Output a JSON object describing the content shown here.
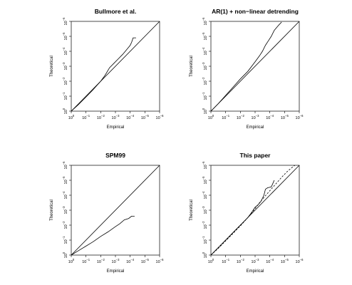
{
  "chart_data": [
    {
      "type": "line",
      "title": "Bullmore et al.",
      "xlabel": "Empirical",
      "ylabel": "Theoretical",
      "x_tick_labels": [
        "10^0",
        "10^-1",
        "10^-2",
        "10^-3",
        "10^-4",
        "10^-5",
        "10^-6"
      ],
      "y_tick_labels": [
        "10^0",
        "10^-1",
        "10^-2",
        "10^-3",
        "10^-4",
        "10^-5",
        "10^-6"
      ],
      "axis_scale": "log10 p-value (neg. exponent)",
      "xlim": [
        0,
        6
      ],
      "ylim": [
        0,
        6
      ],
      "reference_line": "identity",
      "grid": false,
      "series": [
        {
          "style": "solid",
          "points": [
            [
              0,
              0
            ],
            [
              0.5,
              0.45
            ],
            [
              1,
              0.95
            ],
            [
              1.5,
              1.45
            ],
            [
              2,
              2.0
            ],
            [
              2.3,
              2.4
            ],
            [
              2.6,
              2.9
            ],
            [
              2.9,
              3.2
            ],
            [
              3.2,
              3.5
            ],
            [
              3.5,
              3.8
            ],
            [
              3.8,
              4.15
            ],
            [
              4.0,
              4.4
            ],
            [
              4.1,
              4.6
            ],
            [
              4.2,
              4.9
            ],
            [
              4.4,
              4.9
            ]
          ]
        }
      ]
    },
    {
      "type": "line",
      "title": "AR(1) + non−linear detrending",
      "xlabel": "Empirical",
      "ylabel": "Theoretical",
      "x_tick_labels": [
        "10^0",
        "10^-1",
        "10^-2",
        "10^-3",
        "10^-4",
        "10^-5",
        "10^-6"
      ],
      "y_tick_labels": [
        "10^0",
        "10^-1",
        "10^-2",
        "10^-3",
        "10^-4",
        "10^-5",
        "10^-6"
      ],
      "axis_scale": "log10 p-value (neg. exponent)",
      "xlim": [
        0,
        6
      ],
      "ylim": [
        0,
        6
      ],
      "reference_line": "identity",
      "grid": false,
      "series": [
        {
          "style": "solid",
          "points": [
            [
              0,
              0
            ],
            [
              0.5,
              0.5
            ],
            [
              1,
              1.05
            ],
            [
              1.5,
              1.6
            ],
            [
              2,
              2.15
            ],
            [
              2.5,
              2.65
            ],
            [
              3,
              3.3
            ],
            [
              3.3,
              3.7
            ],
            [
              3.5,
              4.0
            ],
            [
              3.7,
              4.4
            ],
            [
              3.9,
              4.7
            ],
            [
              4.1,
              5.0
            ],
            [
              4.3,
              5.4
            ],
            [
              4.6,
              5.75
            ],
            [
              4.8,
              5.95
            ]
          ]
        }
      ]
    },
    {
      "type": "line",
      "title": "SPM99",
      "xlabel": "Empirical",
      "ylabel": "Theoretical",
      "x_tick_labels": [
        "10^0",
        "10^-1",
        "10^-2",
        "10^-3",
        "10^-4",
        "10^-5",
        "10^-6"
      ],
      "y_tick_labels": [
        "10^0",
        "10^-1",
        "10^-2",
        "10^-3",
        "10^-4",
        "10^-5",
        "10^-6"
      ],
      "axis_scale": "log10 p-value (neg. exponent)",
      "xlim": [
        0,
        6
      ],
      "ylim": [
        0,
        6
      ],
      "reference_line": "identity",
      "grid": false,
      "series": [
        {
          "style": "solid",
          "points": [
            [
              0,
              0
            ],
            [
              0.5,
              0.3
            ],
            [
              1,
              0.6
            ],
            [
              1.5,
              0.9
            ],
            [
              2,
              1.25
            ],
            [
              2.5,
              1.55
            ],
            [
              3,
              1.9
            ],
            [
              3.3,
              2.1
            ],
            [
              3.6,
              2.35
            ],
            [
              3.9,
              2.45
            ],
            [
              4.1,
              2.6
            ],
            [
              4.3,
              2.6
            ]
          ]
        }
      ]
    },
    {
      "type": "line",
      "title": "This paper",
      "xlabel": "Empirical",
      "ylabel": "Theoretical",
      "x_tick_labels": [
        "10^0",
        "10^-1",
        "10^-2",
        "10^-3",
        "10^-4",
        "10^-5",
        "10^-6"
      ],
      "y_tick_labels": [
        "10^0",
        "10^-1",
        "10^-2",
        "10^-3",
        "10^-4",
        "10^-5",
        "10^-6"
      ],
      "axis_scale": "log10 p-value (neg. exponent)",
      "xlim": [
        0,
        6
      ],
      "ylim": [
        0,
        6
      ],
      "reference_line": "identity",
      "grid": false,
      "series": [
        {
          "style": "solid",
          "points": [
            [
              0,
              0
            ],
            [
              0.5,
              0.5
            ],
            [
              1,
              1.0
            ],
            [
              1.5,
              1.5
            ],
            [
              2,
              2.0
            ],
            [
              2.5,
              2.5
            ],
            [
              2.8,
              2.9
            ],
            [
              3.0,
              3.2
            ],
            [
              3.2,
              3.35
            ],
            [
              3.4,
              3.6
            ],
            [
              3.6,
              4.0
            ],
            [
              3.7,
              4.4
            ],
            [
              3.85,
              4.5
            ],
            [
              4.1,
              4.55
            ],
            [
              4.3,
              5.0
            ]
          ]
        },
        {
          "style": "dashed",
          "points": [
            [
              0,
              0
            ],
            [
              0.5,
              0.45
            ],
            [
              1,
              0.95
            ],
            [
              1.5,
              1.45
            ],
            [
              2,
              1.95
            ],
            [
              2.5,
              2.5
            ],
            [
              3.0,
              3.1
            ],
            [
              3.3,
              3.5
            ],
            [
              3.6,
              3.85
            ],
            [
              4.0,
              4.3
            ],
            [
              4.4,
              4.75
            ],
            [
              4.8,
              5.2
            ],
            [
              5.2,
              5.6
            ],
            [
              5.5,
              5.85
            ],
            [
              5.7,
              6.0
            ]
          ]
        }
      ]
    }
  ]
}
